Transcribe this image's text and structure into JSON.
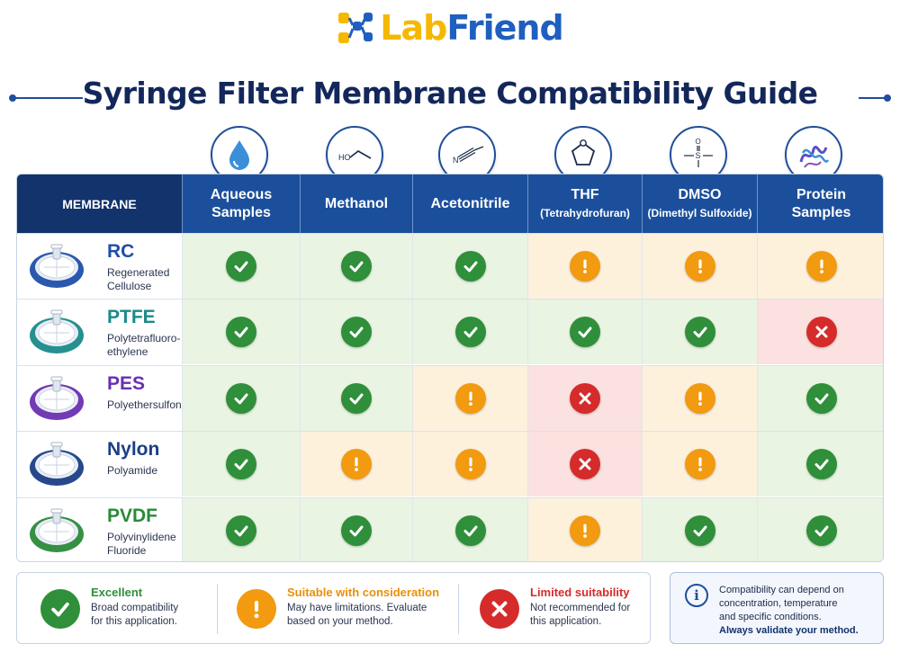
{
  "brand": {
    "part1": "Lab",
    "part2": "Friend"
  },
  "title": "Syringe Filter Membrane Compatibility Guide",
  "colors": {
    "excellent": "#2f8f3a",
    "caution": "#f29a10",
    "limited": "#d62b2b",
    "header": "#1b4f9c",
    "brand_yellow": "#f5b800",
    "brand_blue": "#1f5fbf"
  },
  "header": {
    "membrane": "MEMBRANE",
    "columns": [
      {
        "label": "Aqueous",
        "label2": "Samples",
        "sub": "",
        "icon": "water-drop-icon"
      },
      {
        "label": "Methanol",
        "label2": "",
        "sub": "",
        "icon": "methanol-structure-icon"
      },
      {
        "label": "Acetonitrile",
        "label2": "",
        "sub": "",
        "icon": "acetonitrile-structure-icon"
      },
      {
        "label": "THF",
        "label2": "",
        "sub": "(Tetrahydrofuran)",
        "icon": "thf-ring-icon"
      },
      {
        "label": "DMSO",
        "label2": "",
        "sub": "(Dimethyl Sulfoxide)",
        "icon": "dmso-structure-icon"
      },
      {
        "label": "Protein",
        "label2": "Samples",
        "sub": "",
        "icon": "protein-structure-icon"
      }
    ]
  },
  "icon_labels": {
    "methanol": "HO",
    "acetonitrile": "N",
    "dmso_s": "S",
    "dmso_o": "O"
  },
  "rows": [
    {
      "name": "RC",
      "desc1": "Regenerated",
      "desc2": "Cellulose",
      "color": "#1f4fa8",
      "ratings": [
        "excellent",
        "excellent",
        "excellent",
        "caution",
        "caution",
        "caution"
      ]
    },
    {
      "name": "PTFE",
      "desc1": "Polytetrafluoro-",
      "desc2": "ethylene",
      "color": "#1a8a8a",
      "ratings": [
        "excellent",
        "excellent",
        "excellent",
        "excellent",
        "excellent",
        "limited"
      ]
    },
    {
      "name": "PES",
      "desc1": "Polyethersulfone",
      "desc2": "",
      "color": "#6a2fb0",
      "ratings": [
        "excellent",
        "excellent",
        "caution",
        "limited",
        "caution",
        "excellent"
      ]
    },
    {
      "name": "Nylon",
      "desc1": "Polyamide",
      "desc2": "",
      "color": "#1b3f86",
      "ratings": [
        "excellent",
        "caution",
        "caution",
        "limited",
        "caution",
        "excellent"
      ]
    },
    {
      "name": "PVDF",
      "desc1": "Polyvinylidene",
      "desc2": "Fluoride",
      "color": "#2b8a3a",
      "ratings": [
        "excellent",
        "excellent",
        "excellent",
        "caution",
        "excellent",
        "excellent"
      ]
    }
  ],
  "legend": {
    "excellent": {
      "title": "Excellent",
      "line1": "Broad compatibility",
      "line2": "for this application."
    },
    "caution": {
      "title": "Suitable with consideration",
      "line1": "May have limitations. Evaluate",
      "line2": "based on your method."
    },
    "limited": {
      "title": "Limited suitability",
      "line1": "Not recommended for",
      "line2": "this application."
    }
  },
  "note": {
    "line1": "Compatibility can depend on",
    "line2": "concentration, temperature",
    "line3": "and specific conditions.",
    "strong": "Always validate your method."
  }
}
